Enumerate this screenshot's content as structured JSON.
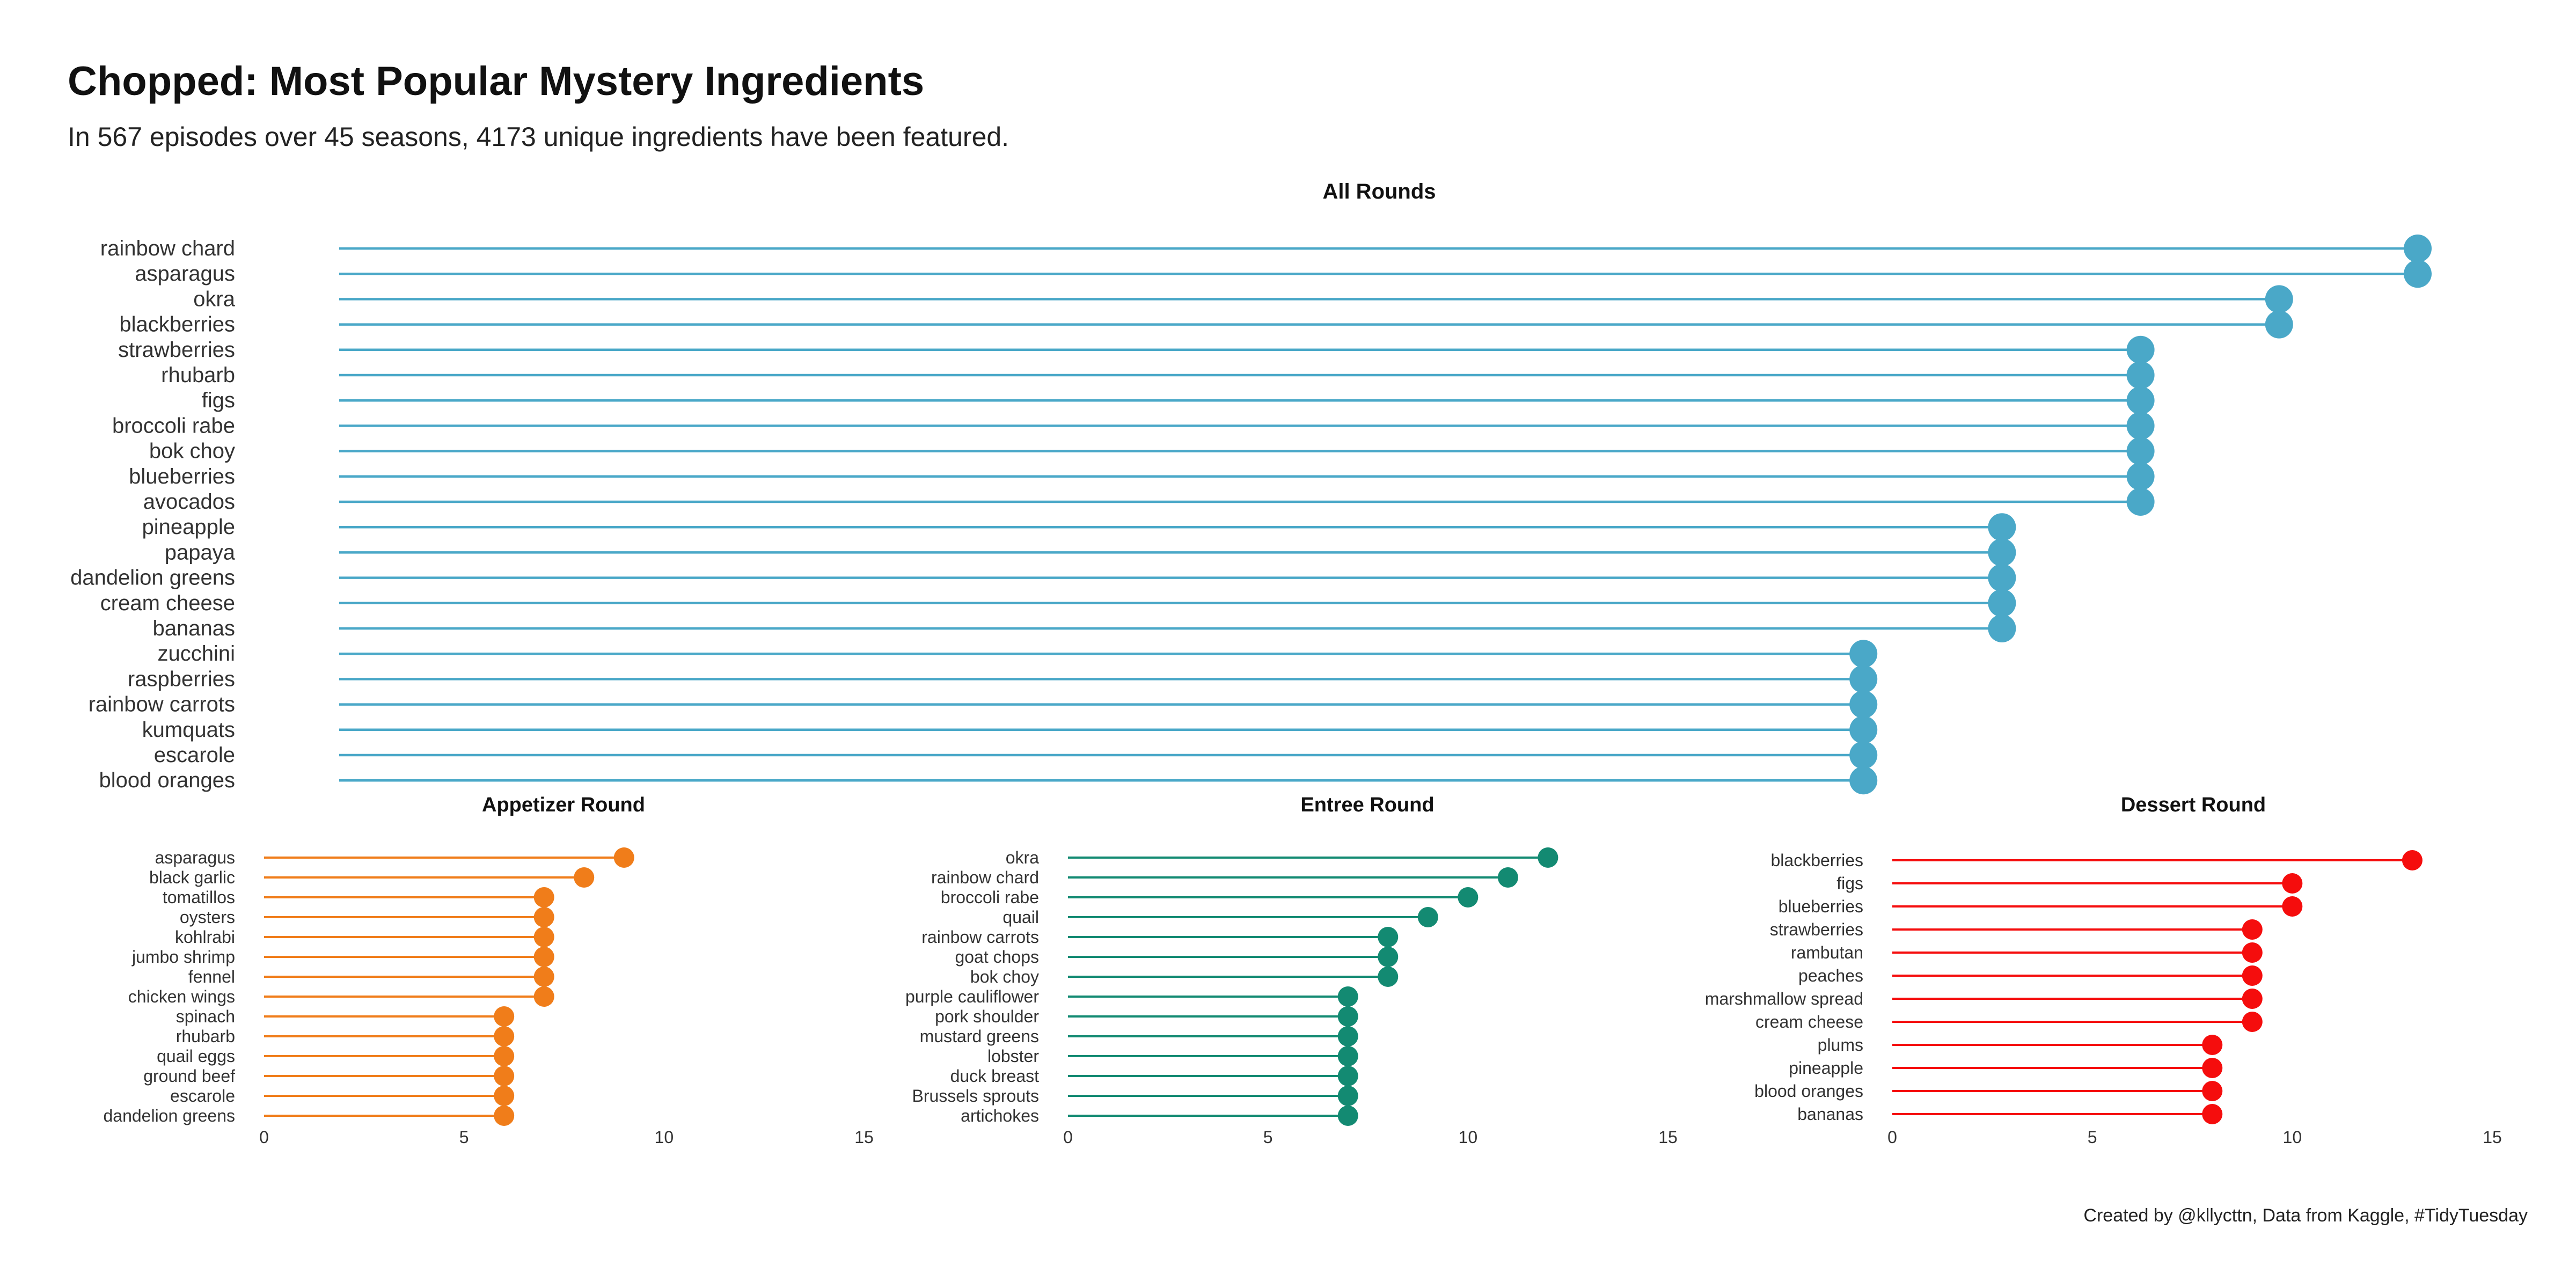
{
  "title": "Chopped: Most Popular Mystery Ingredients",
  "subtitle": "In 567 episodes over 45 seasons, 4173 unique ingredients have been featured.",
  "caption": "Created by @kllycttn, Data from Kaggle, #TidyTuesday",
  "colors": {
    "all": "#4aa8c8",
    "appetizer": "#f07d1a",
    "entree": "#138a72",
    "dessert": "#f50d0d",
    "text": "#111111",
    "axis_text": "#333333"
  },
  "chart_data": [
    {
      "type": "lollipop",
      "title": "All Rounds",
      "color_key": "all",
      "categories": [
        "rainbow chard",
        "asparagus",
        "okra",
        "blackberries",
        "strawberries",
        "rhubarb",
        "figs",
        "broccoli rabe",
        "bok choy",
        "blueberries",
        "avocados",
        "pineapple",
        "papaya",
        "dandelion greens",
        "cream cheese",
        "bananas",
        "zucchini",
        "raspberries",
        "rainbow carrots",
        "kumquats",
        "escarole",
        "blood oranges"
      ],
      "values": [
        18,
        18,
        17,
        17,
        16,
        16,
        16,
        16,
        16,
        16,
        16,
        15,
        15,
        15,
        15,
        15,
        14,
        14,
        14,
        14,
        14,
        14
      ],
      "xlim": [
        3,
        18
      ]
    },
    {
      "type": "lollipop",
      "title": "Appetizer Round",
      "color_key": "appetizer",
      "categories": [
        "asparagus",
        "black garlic",
        "tomatillos",
        "oysters",
        "kohlrabi",
        "jumbo shrimp",
        "fennel",
        "chicken wings",
        "spinach",
        "rhubarb",
        "quail eggs",
        "ground beef",
        "escarole",
        "dandelion greens"
      ],
      "values": [
        9,
        8,
        7,
        7,
        7,
        7,
        7,
        7,
        6,
        6,
        6,
        6,
        6,
        6
      ],
      "xlim": [
        0,
        15
      ],
      "xticks": [
        0,
        5,
        10,
        15
      ]
    },
    {
      "type": "lollipop",
      "title": "Entree Round",
      "color_key": "entree",
      "categories": [
        "okra",
        "rainbow chard",
        "broccoli rabe",
        "quail",
        "rainbow carrots",
        "goat chops",
        "bok choy",
        "purple cauliflower",
        "pork shoulder",
        "mustard greens",
        "lobster",
        "duck breast",
        "Brussels sprouts",
        "artichokes"
      ],
      "values": [
        12,
        11,
        10,
        9,
        8,
        8,
        8,
        7,
        7,
        7,
        7,
        7,
        7,
        7
      ],
      "xlim": [
        0,
        15
      ],
      "xticks": [
        0,
        5,
        10,
        15
      ]
    },
    {
      "type": "lollipop",
      "title": "Dessert Round",
      "color_key": "dessert",
      "categories": [
        "blackberries",
        "figs",
        "blueberries",
        "strawberries",
        "rambutan",
        "peaches",
        "marshmallow spread",
        "cream cheese",
        "plums",
        "pineapple",
        "blood oranges",
        "bananas"
      ],
      "values": [
        13,
        10,
        10,
        9,
        9,
        9,
        9,
        9,
        8,
        8,
        8,
        8
      ],
      "xlim": [
        0,
        15
      ],
      "xticks": [
        0,
        5,
        10,
        15
      ]
    }
  ]
}
